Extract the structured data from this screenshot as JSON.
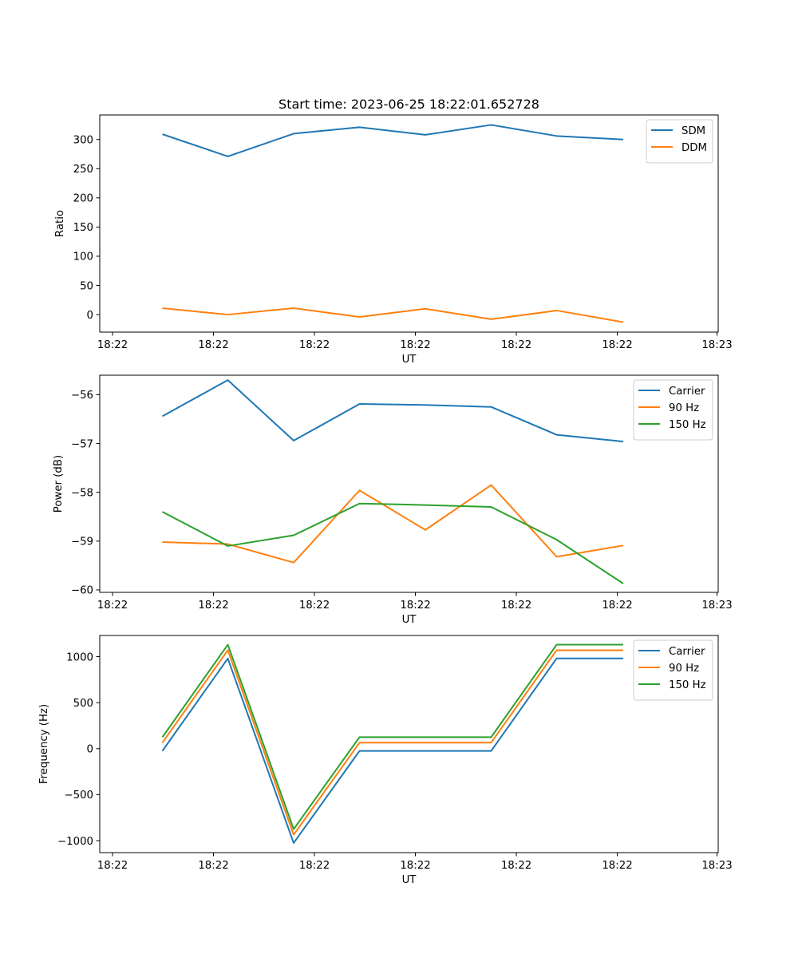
{
  "title": "Start time: 2023-06-25 18:22:01.652728",
  "chart_data": [
    {
      "type": "line",
      "xlabel": "UT",
      "ylabel": "Ratio",
      "x_tick_labels": [
        "18:22",
        "18:22",
        "18:22",
        "18:22",
        "18:22",
        "18:22",
        "18:23"
      ],
      "ylim": [
        -30,
        342
      ],
      "yticks": [
        0,
        50,
        100,
        150,
        200,
        250,
        300
      ],
      "grid": false,
      "legend_position": "top-right",
      "series": [
        {
          "name": "SDM",
          "color": "#1f77b4",
          "values": [
            309,
            271,
            310,
            321,
            308,
            325,
            306,
            300
          ]
        },
        {
          "name": "DDM",
          "color": "#ff7f0e",
          "values": [
            11,
            0,
            11,
            -4,
            10,
            -8,
            7,
            -13
          ]
        }
      ]
    },
    {
      "type": "line",
      "xlabel": "UT",
      "ylabel": "Power (dB)",
      "x_tick_labels": [
        "18:22",
        "18:22",
        "18:22",
        "18:22",
        "18:22",
        "18:22",
        "18:23"
      ],
      "ylim": [
        -60.05,
        -55.6
      ],
      "yticks": [
        -60,
        -59,
        -58,
        -57,
        -56
      ],
      "grid": false,
      "legend_position": "top-right",
      "series": [
        {
          "name": "Carrier",
          "color": "#1f77b4",
          "values": [
            -56.44,
            -55.7,
            -56.94,
            -56.19,
            -56.21,
            -56.25,
            -56.82,
            -56.96
          ]
        },
        {
          "name": "90 Hz",
          "color": "#ff7f0e",
          "values": [
            -59.02,
            -59.06,
            -59.44,
            -57.96,
            -58.77,
            -57.85,
            -59.32,
            -59.09
          ]
        },
        {
          "name": "150 Hz",
          "color": "#2ca02c",
          "values": [
            -58.4,
            -59.1,
            -58.88,
            -58.23,
            -58.26,
            -58.3,
            -58.97,
            -59.87
          ]
        }
      ]
    },
    {
      "type": "line",
      "xlabel": "UT",
      "ylabel": "Frequency (Hz)",
      "x_tick_labels": [
        "18:22",
        "18:22",
        "18:22",
        "18:22",
        "18:22",
        "18:22",
        "18:23"
      ],
      "ylim": [
        -1130,
        1230
      ],
      "yticks": [
        -1000,
        -500,
        0,
        500,
        1000
      ],
      "grid": false,
      "legend_position": "top-right",
      "series": [
        {
          "name": "Carrier",
          "color": "#1f77b4",
          "values": [
            -25,
            980,
            -1025,
            -25,
            -25,
            -25,
            980,
            980
          ]
        },
        {
          "name": "90 Hz",
          "color": "#ff7f0e",
          "values": [
            65,
            1070,
            -935,
            65,
            65,
            65,
            1070,
            1070
          ]
        },
        {
          "name": "150 Hz",
          "color": "#2ca02c",
          "values": [
            125,
            1130,
            -875,
            125,
            125,
            125,
            1130,
            1130
          ]
        }
      ]
    }
  ]
}
